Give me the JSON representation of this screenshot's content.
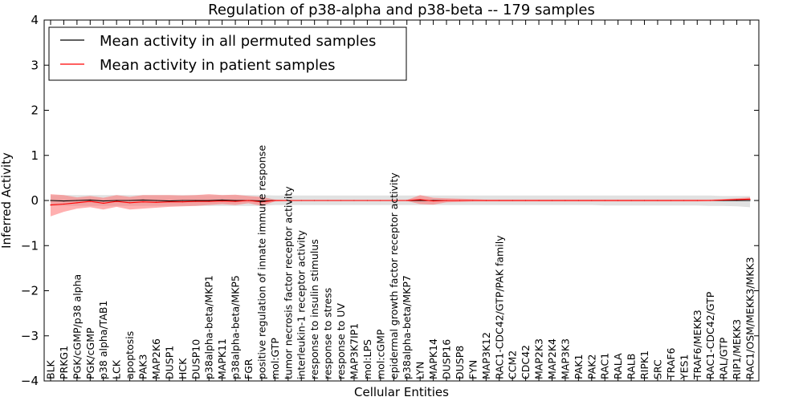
{
  "chart_data": {
    "type": "line",
    "title": "Regulation of p38-alpha and p38-beta -- 179 samples",
    "xlabel": "Cellular Entities",
    "ylabel": "Inferred Activity",
    "ylim": [
      -4,
      4
    ],
    "yticks": [
      "4",
      "3",
      "2",
      "1",
      "0",
      "−1",
      "−2",
      "−3",
      "−4"
    ],
    "legend_position": "top-left",
    "colors": {
      "permuted": "#000000",
      "patient": "#ff0000",
      "band_permuted": "#c8c8c8",
      "band_patient": "#ff7070"
    },
    "categories": [
      "BLK",
      "PRKG1",
      "PGK/cGMP/p38 alpha",
      "PGK/cGMP",
      "p38 alpha/TAB1",
      "LCK",
      "apoptosis",
      "PAK3",
      "MAP2K6",
      "DUSP1",
      "HCK",
      "DUSP10",
      "p38alpha-beta/MKP1",
      "MAPK11",
      "p38alpha-beta/MKP5",
      "FGR",
      "positive regulation of innate immune response",
      "mol:GTP",
      "tumor necrosis factor receptor activity",
      "interleukin-1 receptor activity",
      "response to insulin stimulus",
      "response to stress",
      "response to UV",
      "MAP3K7IP1",
      "mol:LPS",
      "mol:cGMP",
      "epidermal growth factor receptor activity",
      "p38alpha-beta/MKP7",
      "LYN",
      "MAPK14",
      "DUSP16",
      "DUSP8",
      "FYN",
      "MAP3K12",
      "RAC1-CDC42/GTP/PAK family",
      "CCM2",
      "CDC42",
      "MAP2K3",
      "MAP2K4",
      "MAP3K3",
      "PAK1",
      "PAK2",
      "RAC1",
      "RALA",
      "RALB",
      "RIPK1",
      "SRC",
      "TRAF6",
      "YES1",
      "TRAF6/MEKK3",
      "RAC1-CDC42/GTP",
      "RAL/GTP",
      "RIP1/MEKK3",
      "RAC1/OSM/MEKK3/MKK3"
    ],
    "series": [
      {
        "name": "Mean activity in all permuted samples",
        "color": "#000000",
        "values": [
          0.0,
          -0.01,
          0.0,
          0.01,
          -0.01,
          0.0,
          0.0,
          0.01,
          0.0,
          -0.01,
          0.0,
          0.0,
          0.0,
          0.01,
          0.0,
          0.0,
          -0.01,
          0.0,
          0.0,
          0.0,
          0.0,
          0.0,
          0.0,
          0.0,
          0.0,
          0.0,
          0.0,
          0.0,
          0.0,
          0.0,
          0.0,
          0.0,
          0.0,
          0.0,
          0.0,
          0.0,
          0.0,
          0.0,
          0.0,
          0.0,
          0.0,
          0.0,
          0.0,
          0.0,
          0.0,
          0.0,
          0.0,
          0.0,
          0.0,
          0.0,
          0.0,
          0.0,
          0.0,
          0.0
        ],
        "lower": [
          -0.12,
          -0.12,
          -0.12,
          -0.12,
          -0.12,
          -0.12,
          -0.12,
          -0.12,
          -0.12,
          -0.12,
          -0.12,
          -0.12,
          -0.12,
          -0.12,
          -0.12,
          -0.12,
          -0.12,
          -0.1,
          -0.1,
          -0.1,
          -0.1,
          -0.1,
          -0.1,
          -0.1,
          -0.1,
          -0.1,
          -0.1,
          -0.1,
          -0.1,
          -0.1,
          -0.1,
          -0.1,
          -0.1,
          -0.1,
          -0.1,
          -0.1,
          -0.1,
          -0.1,
          -0.1,
          -0.1,
          -0.1,
          -0.1,
          -0.11,
          -0.11,
          -0.11,
          -0.11,
          -0.11,
          -0.11,
          -0.11,
          -0.11,
          -0.12,
          -0.12,
          -0.13,
          -0.15
        ],
        "upper": [
          0.12,
          0.12,
          0.12,
          0.12,
          0.12,
          0.12,
          0.12,
          0.12,
          0.12,
          0.12,
          0.12,
          0.12,
          0.12,
          0.12,
          0.12,
          0.12,
          0.12,
          0.11,
          0.11,
          0.11,
          0.11,
          0.11,
          0.11,
          0.11,
          0.11,
          0.11,
          0.11,
          0.11,
          0.11,
          0.11,
          0.11,
          0.11,
          0.11,
          0.11,
          0.11,
          0.11,
          0.11,
          0.11,
          0.11,
          0.11,
          0.11,
          0.11,
          0.11,
          0.11,
          0.11,
          0.11,
          0.11,
          0.11,
          0.11,
          0.11,
          0.11,
          0.1,
          0.1,
          0.1
        ]
      },
      {
        "name": "Mean activity in patient samples",
        "color": "#ff0000",
        "values": [
          -0.1,
          -0.08,
          -0.05,
          -0.02,
          -0.06,
          -0.02,
          -0.05,
          -0.03,
          -0.04,
          -0.03,
          -0.03,
          -0.02,
          -0.02,
          -0.01,
          -0.02,
          0.0,
          -0.03,
          0.0,
          0.0,
          0.0,
          0.0,
          0.0,
          0.0,
          0.0,
          0.0,
          0.0,
          0.0,
          0.0,
          0.02,
          -0.01,
          0.0,
          0.0,
          0.0,
          0.0,
          0.0,
          0.0,
          0.0,
          0.0,
          0.0,
          0.0,
          0.0,
          0.0,
          0.0,
          0.0,
          0.0,
          0.0,
          0.0,
          0.0,
          0.0,
          0.0,
          0.0,
          0.01,
          0.02,
          0.03
        ],
        "lower": [
          -0.35,
          -0.25,
          -0.18,
          -0.15,
          -0.2,
          -0.14,
          -0.2,
          -0.18,
          -0.16,
          -0.14,
          -0.13,
          -0.12,
          -0.1,
          -0.08,
          -0.1,
          -0.06,
          -0.12,
          -0.02,
          -0.01,
          -0.01,
          -0.01,
          -0.01,
          -0.01,
          -0.01,
          -0.01,
          -0.01,
          -0.01,
          -0.01,
          -0.08,
          -0.09,
          -0.04,
          -0.03,
          -0.02,
          -0.02,
          -0.02,
          -0.02,
          -0.02,
          -0.02,
          -0.02,
          -0.02,
          -0.02,
          -0.02,
          -0.02,
          -0.02,
          -0.02,
          -0.02,
          -0.02,
          -0.02,
          -0.02,
          -0.02,
          -0.01,
          0.0,
          0.0,
          0.0
        ],
        "upper": [
          0.14,
          0.12,
          0.07,
          0.1,
          0.06,
          0.12,
          0.08,
          0.12,
          0.12,
          0.12,
          0.11,
          0.12,
          0.14,
          0.12,
          0.13,
          0.1,
          0.08,
          0.02,
          0.01,
          0.01,
          0.01,
          0.01,
          0.01,
          0.01,
          0.01,
          0.01,
          0.01,
          0.01,
          0.12,
          0.06,
          0.05,
          0.04,
          0.03,
          0.02,
          0.02,
          0.02,
          0.02,
          0.02,
          0.02,
          0.02,
          0.02,
          0.02,
          0.02,
          0.02,
          0.02,
          0.02,
          0.02,
          0.02,
          0.02,
          0.02,
          0.02,
          0.03,
          0.05,
          0.07
        ]
      }
    ]
  }
}
